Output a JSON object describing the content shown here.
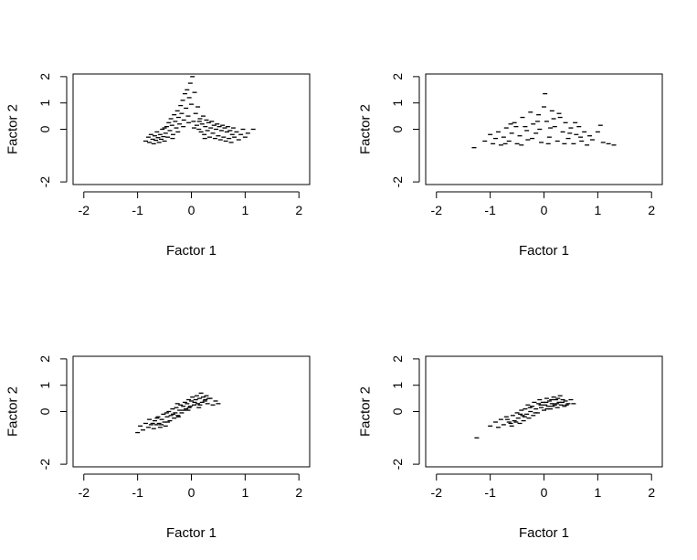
{
  "figure": {
    "layout": "2x2 grid of scatter plots"
  },
  "chart_data": [
    {
      "type": "scatter",
      "panel": "top-left",
      "title": "",
      "xlabel": "Factor 1",
      "ylabel": "Factor 2",
      "xlim": [
        -2.2,
        2.2
      ],
      "ylim": [
        -2.1,
        2.1
      ],
      "x_ticks": [
        -2,
        -1,
        0,
        1,
        2
      ],
      "y_ticks": [
        -2,
        0,
        1,
        2
      ],
      "x_tick_labels": [
        "-2",
        "-1",
        "0",
        "1",
        "2"
      ],
      "y_tick_labels": [
        "-2",
        "0",
        "1",
        "2"
      ],
      "grid": false,
      "marker": "short horizontal dash",
      "point_color": "#000000",
      "points": [
        [
          -0.85,
          -0.45
        ],
        [
          -0.8,
          -0.3
        ],
        [
          -0.78,
          -0.5
        ],
        [
          -0.75,
          -0.2
        ],
        [
          -0.72,
          -0.38
        ],
        [
          -0.7,
          -0.55
        ],
        [
          -0.68,
          -0.25
        ],
        [
          -0.66,
          -0.42
        ],
        [
          -0.64,
          -0.1
        ],
        [
          -0.62,
          -0.32
        ],
        [
          -0.6,
          -0.5
        ],
        [
          -0.58,
          -0.2
        ],
        [
          -0.56,
          -0.38
        ],
        [
          -0.54,
          0.0
        ],
        [
          -0.52,
          -0.28
        ],
        [
          -0.5,
          -0.45
        ],
        [
          -0.48,
          -0.15
        ],
        [
          -0.46,
          0.1
        ],
        [
          -0.44,
          -0.3
        ],
        [
          -0.42,
          0.25
        ],
        [
          -0.4,
          -0.05
        ],
        [
          -0.38,
          0.4
        ],
        [
          -0.36,
          0.15
        ],
        [
          -0.34,
          -0.2
        ],
        [
          -0.32,
          0.55
        ],
        [
          -0.3,
          0.3
        ],
        [
          -0.28,
          0.05
        ],
        [
          -0.26,
          0.7
        ],
        [
          -0.24,
          0.45
        ],
        [
          -0.22,
          0.2
        ],
        [
          -0.2,
          0.9
        ],
        [
          -0.18,
          0.6
        ],
        [
          -0.16,
          1.1
        ],
        [
          -0.14,
          0.35
        ],
        [
          -0.12,
          1.35
        ],
        [
          -0.1,
          0.8
        ],
        [
          -0.08,
          1.5
        ],
        [
          -0.06,
          0.5
        ],
        [
          -0.04,
          1.2
        ],
        [
          -0.02,
          1.75
        ],
        [
          0.0,
          0.95
        ],
        [
          0.02,
          2.0
        ],
        [
          0.04,
          0.3
        ],
        [
          0.06,
          1.4
        ],
        [
          0.08,
          0.6
        ],
        [
          0.1,
          0.15
        ],
        [
          0.12,
          0.85
        ],
        [
          0.14,
          0.0
        ],
        [
          0.16,
          0.4
        ],
        [
          0.18,
          -0.1
        ],
        [
          0.2,
          0.2
        ],
        [
          0.22,
          0.5
        ],
        [
          0.24,
          -0.2
        ],
        [
          0.26,
          0.1
        ],
        [
          0.28,
          0.35
        ],
        [
          0.3,
          -0.05
        ],
        [
          0.32,
          0.25
        ],
        [
          0.34,
          -0.3
        ],
        [
          0.36,
          0.05
        ],
        [
          0.38,
          0.3
        ],
        [
          0.4,
          -0.15
        ],
        [
          0.42,
          0.15
        ],
        [
          0.44,
          -0.35
        ],
        [
          0.46,
          0.0
        ],
        [
          0.48,
          0.2
        ],
        [
          0.5,
          -0.25
        ],
        [
          0.52,
          0.1
        ],
        [
          0.54,
          -0.4
        ],
        [
          0.56,
          -0.05
        ],
        [
          0.58,
          0.15
        ],
        [
          0.6,
          -0.3
        ],
        [
          0.62,
          0.05
        ],
        [
          0.64,
          -0.45
        ],
        [
          0.66,
          -0.1
        ],
        [
          0.68,
          0.1
        ],
        [
          0.7,
          -0.35
        ],
        [
          0.72,
          -0.05
        ],
        [
          0.74,
          -0.5
        ],
        [
          0.76,
          -0.2
        ],
        [
          0.78,
          0.05
        ],
        [
          0.8,
          -0.3
        ],
        [
          0.84,
          -0.1
        ],
        [
          0.88,
          -0.4
        ],
        [
          0.92,
          -0.2
        ],
        [
          0.96,
          0.0
        ],
        [
          1.0,
          -0.3
        ],
        [
          1.05,
          -0.15
        ],
        [
          1.15,
          0.0
        ],
        [
          -0.5,
          0.05
        ],
        [
          -0.35,
          -0.35
        ],
        [
          -0.25,
          -0.1
        ],
        [
          -0.15,
          0.1
        ],
        [
          -0.05,
          0.25
        ],
        [
          0.05,
          0.05
        ],
        [
          0.15,
          0.3
        ],
        [
          0.25,
          -0.35
        ]
      ]
    },
    {
      "type": "scatter",
      "panel": "top-right",
      "title": "",
      "xlabel": "Factor 1",
      "ylabel": "Factor 2",
      "xlim": [
        -2.2,
        2.2
      ],
      "ylim": [
        -2.1,
        2.1
      ],
      "x_ticks": [
        -2,
        -1,
        0,
        1,
        2
      ],
      "y_ticks": [
        -2,
        0,
        1,
        2
      ],
      "x_tick_labels": [
        "-2",
        "-1",
        "0",
        "1",
        "2"
      ],
      "y_tick_labels": [
        "-2",
        "0",
        "1",
        "2"
      ],
      "grid": false,
      "marker": "short horizontal dash",
      "point_color": "#000000",
      "points": [
        [
          -1.3,
          -0.7
        ],
        [
          -1.1,
          -0.45
        ],
        [
          -1.0,
          -0.2
        ],
        [
          -0.95,
          -0.55
        ],
        [
          -0.9,
          -0.35
        ],
        [
          -0.85,
          -0.1
        ],
        [
          -0.8,
          -0.6
        ],
        [
          -0.75,
          -0.3
        ],
        [
          -0.7,
          0.05
        ],
        [
          -0.65,
          -0.45
        ],
        [
          -0.6,
          -0.15
        ],
        [
          -0.55,
          0.25
        ],
        [
          -0.5,
          -0.55
        ],
        [
          -0.45,
          -0.25
        ],
        [
          -0.4,
          0.45
        ],
        [
          -0.35,
          0.1
        ],
        [
          -0.3,
          -0.4
        ],
        [
          -0.25,
          0.65
        ],
        [
          -0.2,
          0.2
        ],
        [
          -0.15,
          -0.15
        ],
        [
          -0.1,
          0.55
        ],
        [
          -0.05,
          -0.5
        ],
        [
          0.0,
          0.85
        ],
        [
          0.02,
          1.35
        ],
        [
          0.05,
          0.3
        ],
        [
          0.1,
          -0.3
        ],
        [
          0.15,
          0.7
        ],
        [
          0.2,
          0.1
        ],
        [
          0.25,
          -0.45
        ],
        [
          0.3,
          0.45
        ],
        [
          0.35,
          -0.1
        ],
        [
          0.4,
          0.25
        ],
        [
          0.45,
          -0.35
        ],
        [
          0.5,
          0.05
        ],
        [
          0.55,
          -0.55
        ],
        [
          0.6,
          -0.2
        ],
        [
          0.65,
          0.1
        ],
        [
          0.7,
          -0.45
        ],
        [
          0.75,
          -0.1
        ],
        [
          0.8,
          -0.6
        ],
        [
          0.85,
          -0.25
        ],
        [
          0.9,
          -0.4
        ],
        [
          1.0,
          -0.1
        ],
        [
          1.05,
          0.15
        ],
        [
          1.1,
          -0.5
        ],
        [
          1.2,
          -0.55
        ],
        [
          1.3,
          -0.6
        ],
        [
          -0.72,
          -0.55
        ],
        [
          -0.52,
          0.1
        ],
        [
          -0.32,
          -0.05
        ],
        [
          -0.12,
          0.3
        ],
        [
          0.08,
          -0.55
        ],
        [
          0.28,
          0.6
        ],
        [
          0.48,
          -0.15
        ],
        [
          0.68,
          -0.3
        ],
        [
          -0.62,
          0.2
        ],
        [
          -0.42,
          -0.6
        ],
        [
          -0.22,
          -0.35
        ],
        [
          0.18,
          0.4
        ],
        [
          0.38,
          -0.55
        ],
        [
          0.58,
          0.25
        ],
        [
          -0.08,
          0.0
        ],
        [
          0.12,
          0.05
        ]
      ]
    },
    {
      "type": "scatter",
      "panel": "bottom-left",
      "title": "",
      "xlabel": "Factor 1",
      "ylabel": "Factor 2",
      "xlim": [
        -2.2,
        2.2
      ],
      "ylim": [
        -2.1,
        2.1
      ],
      "x_ticks": [
        -2,
        -1,
        0,
        1,
        2
      ],
      "y_ticks": [
        -2,
        0,
        1,
        2
      ],
      "x_tick_labels": [
        "-2",
        "-1",
        "0",
        "1",
        "2"
      ],
      "y_tick_labels": [
        "-2",
        "0",
        "1",
        "2"
      ],
      "grid": false,
      "marker": "short horizontal dash",
      "point_color": "#000000",
      "points": [
        [
          -1.0,
          -0.8
        ],
        [
          -0.95,
          -0.55
        ],
        [
          -0.9,
          -0.7
        ],
        [
          -0.85,
          -0.45
        ],
        [
          -0.8,
          -0.6
        ],
        [
          -0.78,
          -0.3
        ],
        [
          -0.75,
          -0.5
        ],
        [
          -0.7,
          -0.65
        ],
        [
          -0.68,
          -0.35
        ],
        [
          -0.65,
          -0.5
        ],
        [
          -0.62,
          -0.2
        ],
        [
          -0.6,
          -0.45
        ],
        [
          -0.58,
          -0.6
        ],
        [
          -0.55,
          -0.3
        ],
        [
          -0.52,
          -0.1
        ],
        [
          -0.5,
          -0.4
        ],
        [
          -0.48,
          -0.55
        ],
        [
          -0.45,
          -0.2
        ],
        [
          -0.42,
          0.0
        ],
        [
          -0.4,
          -0.35
        ],
        [
          -0.38,
          -0.15
        ],
        [
          -0.35,
          0.1
        ],
        [
          -0.32,
          -0.25
        ],
        [
          -0.3,
          -0.05
        ],
        [
          -0.28,
          0.15
        ],
        [
          -0.25,
          -0.15
        ],
        [
          -0.22,
          0.05
        ],
        [
          -0.2,
          0.25
        ],
        [
          -0.18,
          -0.05
        ],
        [
          -0.15,
          0.2
        ],
        [
          -0.12,
          0.35
        ],
        [
          -0.1,
          0.1
        ],
        [
          -0.08,
          0.3
        ],
        [
          -0.05,
          0.45
        ],
        [
          -0.02,
          0.2
        ],
        [
          0.0,
          0.4
        ],
        [
          0.02,
          0.55
        ],
        [
          0.05,
          0.25
        ],
        [
          0.08,
          0.45
        ],
        [
          0.1,
          0.6
        ],
        [
          0.12,
          0.3
        ],
        [
          0.15,
          0.5
        ],
        [
          0.18,
          0.7
        ],
        [
          0.2,
          0.35
        ],
        [
          0.22,
          0.55
        ],
        [
          0.25,
          0.4
        ],
        [
          0.28,
          0.6
        ],
        [
          0.3,
          0.3
        ],
        [
          0.35,
          0.5
        ],
        [
          0.4,
          0.25
        ],
        [
          0.45,
          0.4
        ],
        [
          0.5,
          0.3
        ],
        [
          -0.72,
          -0.45
        ],
        [
          -0.56,
          -0.5
        ],
        [
          -0.44,
          -0.4
        ],
        [
          -0.34,
          -0.1
        ],
        [
          -0.24,
          -0.2
        ],
        [
          -0.14,
          0.05
        ],
        [
          -0.04,
          0.15
        ],
        [
          0.06,
          0.35
        ],
        [
          0.16,
          0.25
        ],
        [
          0.26,
          0.45
        ],
        [
          -0.64,
          -0.25
        ],
        [
          -0.46,
          -0.05
        ],
        [
          -0.26,
          0.3
        ],
        [
          -0.06,
          0.05
        ],
        [
          0.14,
          0.15
        ],
        [
          0.32,
          0.5
        ]
      ]
    },
    {
      "type": "scatter",
      "panel": "bottom-right",
      "title": "",
      "xlabel": "Factor 1",
      "ylabel": "Factor 2",
      "xlim": [
        -2.2,
        2.2
      ],
      "ylim": [
        -2.1,
        2.1
      ],
      "x_ticks": [
        -2,
        -1,
        0,
        1,
        2
      ],
      "y_ticks": [
        -2,
        0,
        1,
        2
      ],
      "x_tick_labels": [
        "-2",
        "-1",
        "0",
        "1",
        "2"
      ],
      "y_tick_labels": [
        "-2",
        "0",
        "1",
        "2"
      ],
      "grid": false,
      "marker": "short horizontal dash",
      "point_color": "#000000",
      "points": [
        [
          -1.25,
          -1.0
        ],
        [
          -1.0,
          -0.55
        ],
        [
          -0.9,
          -0.4
        ],
        [
          -0.85,
          -0.6
        ],
        [
          -0.8,
          -0.3
        ],
        [
          -0.75,
          -0.5
        ],
        [
          -0.7,
          -0.2
        ],
        [
          -0.65,
          -0.4
        ],
        [
          -0.6,
          -0.55
        ],
        [
          -0.58,
          -0.15
        ],
        [
          -0.55,
          -0.35
        ],
        [
          -0.5,
          -0.05
        ],
        [
          -0.48,
          -0.25
        ],
        [
          -0.45,
          -0.45
        ],
        [
          -0.42,
          0.05
        ],
        [
          -0.4,
          -0.15
        ],
        [
          -0.38,
          -0.35
        ],
        [
          -0.35,
          0.1
        ],
        [
          -0.32,
          -0.1
        ],
        [
          -0.3,
          0.25
        ],
        [
          -0.28,
          -0.25
        ],
        [
          -0.25,
          0.0
        ],
        [
          -0.22,
          0.2
        ],
        [
          -0.2,
          -0.15
        ],
        [
          -0.18,
          0.35
        ],
        [
          -0.15,
          0.1
        ],
        [
          -0.12,
          -0.05
        ],
        [
          -0.1,
          0.3
        ],
        [
          -0.08,
          0.45
        ],
        [
          -0.05,
          0.15
        ],
        [
          -0.02,
          0.35
        ],
        [
          0.0,
          0.05
        ],
        [
          0.02,
          0.25
        ],
        [
          0.05,
          0.5
        ],
        [
          0.08,
          0.2
        ],
        [
          0.1,
          0.4
        ],
        [
          0.12,
          0.1
        ],
        [
          0.15,
          0.3
        ],
        [
          0.18,
          0.55
        ],
        [
          0.2,
          0.25
        ],
        [
          0.22,
          0.45
        ],
        [
          0.25,
          0.15
        ],
        [
          0.28,
          0.35
        ],
        [
          0.3,
          0.6
        ],
        [
          0.32,
          0.25
        ],
        [
          0.35,
          0.45
        ],
        [
          0.38,
          0.2
        ],
        [
          0.4,
          0.4
        ],
        [
          0.45,
          0.3
        ],
        [
          0.5,
          0.45
        ],
        [
          0.55,
          0.3
        ],
        [
          -0.68,
          -0.3
        ],
        [
          -0.52,
          -0.4
        ],
        [
          -0.36,
          -0.2
        ],
        [
          -0.26,
          0.15
        ],
        [
          -0.16,
          -0.05
        ],
        [
          -0.06,
          0.25
        ],
        [
          0.04,
          0.35
        ],
        [
          0.14,
          0.45
        ],
        [
          0.24,
          0.3
        ],
        [
          0.34,
          0.35
        ],
        [
          -0.44,
          -0.1
        ],
        [
          0.06,
          0.1
        ],
        [
          0.26,
          0.5
        ],
        [
          0.42,
          0.25
        ],
        [
          -0.62,
          -0.45
        ],
        [
          0.16,
          0.2
        ]
      ]
    }
  ]
}
